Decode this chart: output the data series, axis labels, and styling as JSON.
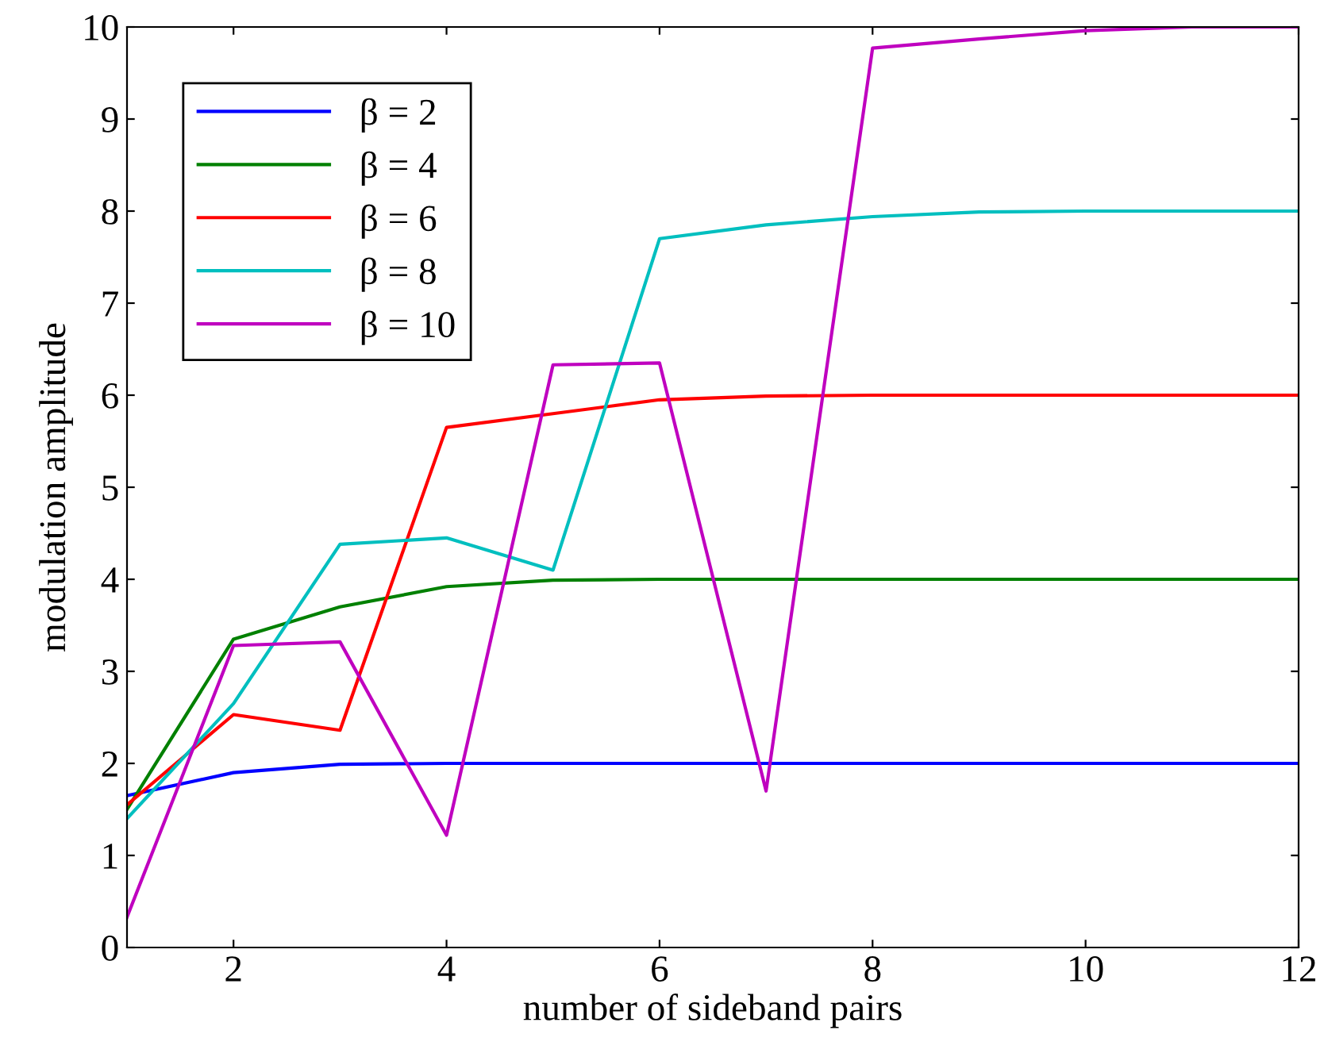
{
  "chart_data": {
    "type": "line",
    "xlabel": "number of sideband pairs",
    "ylabel": "modulation amplitude",
    "x": [
      1,
      2,
      3,
      4,
      5,
      6,
      7,
      8,
      9,
      10,
      11,
      12
    ],
    "series": [
      {
        "name": "β = 2",
        "color": "#0000ff",
        "values": [
          1.65,
          1.9,
          1.99,
          2,
          2,
          2,
          2,
          2,
          2,
          2,
          2,
          2
        ]
      },
      {
        "name": "β = 4",
        "color": "#008000",
        "values": [
          1.5,
          3.35,
          3.7,
          3.92,
          3.99,
          4,
          4,
          4,
          4,
          4,
          4,
          4
        ]
      },
      {
        "name": "β = 6",
        "color": "#ff0000",
        "values": [
          1.55,
          2.53,
          2.36,
          5.65,
          5.8,
          5.95,
          5.99,
          6,
          6,
          6,
          6,
          6
        ]
      },
      {
        "name": "β = 8",
        "color": "#00bfbf",
        "values": [
          1.4,
          2.65,
          4.38,
          4.45,
          4.1,
          7.7,
          7.85,
          7.94,
          7.99,
          8,
          8,
          8
        ]
      },
      {
        "name": "β = 10",
        "color": "#bf00bf",
        "values": [
          0.33,
          3.28,
          3.32,
          1.22,
          6.33,
          6.35,
          1.7,
          9.77,
          9.87,
          9.96,
          10,
          10
        ]
      }
    ],
    "xlim": [
      1,
      12
    ],
    "xticks": [
      2,
      4,
      6,
      8,
      10,
      12
    ],
    "ylim": [
      0,
      10
    ],
    "yticks": [
      0,
      1,
      2,
      3,
      4,
      5,
      6,
      7,
      8,
      9,
      10
    ],
    "grid": false,
    "legend": "top left",
    "marker": "none",
    "line_style": "solid"
  }
}
